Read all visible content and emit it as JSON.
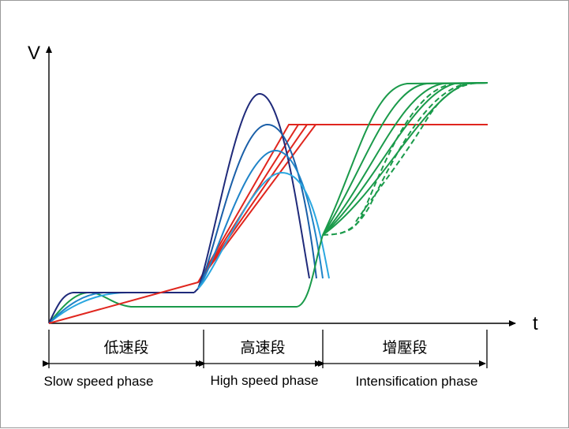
{
  "axes": {
    "y_label": "V",
    "x_label": "t"
  },
  "phases": [
    {
      "cn": "低速段",
      "en": "Slow speed phase"
    },
    {
      "cn": "高速段",
      "en": "High speed phase"
    },
    {
      "cn": "增壓段",
      "en": "Intensification phase"
    }
  ],
  "colors": {
    "red": "#e0261e",
    "navy": "#1f2a7a",
    "blue_dark": "#1a5fa8",
    "blue_mid": "#1f84c8",
    "blue_light": "#2aa7e0",
    "green": "#1a9a4a",
    "axis": "#000000"
  }
}
